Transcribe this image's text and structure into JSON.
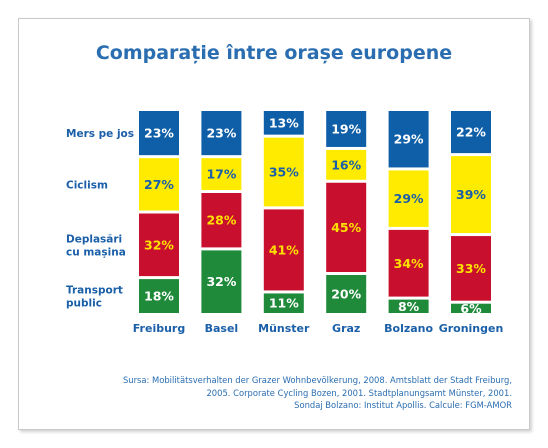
{
  "title": "Comparație între orașe europene",
  "source_lines": [
    "Sursa: Mobilitätsverhalten der Grazer Wohnbevölkerung, 2008. Amtsblatt der Stadt Freiburg,",
    "2005. Corporate Cycling Bozen, 2001. Stadtplanungsamt Münster, 2001.",
    "Sondaj Bolzano: Institut Apollis. Calcule: FGM-AMOR"
  ],
  "chart_data": {
    "type": "bar",
    "stacked": true,
    "value_unit": "%",
    "categories": [
      "Freiburg",
      "Basel",
      "Münster",
      "Graz",
      "Bolzano",
      "Groningen"
    ],
    "series": [
      {
        "name": "Transport public",
        "label_lines": [
          "Transport",
          "public"
        ],
        "color": "#1f8a3a",
        "label_color": "#ffffff",
        "values": [
          18,
          32,
          11,
          20,
          8,
          6
        ]
      },
      {
        "name": "Deplasări cu mașina",
        "label_lines": [
          "Deplasări",
          "cu mașina"
        ],
        "color": "#c8102e",
        "label_color": "#ffe100",
        "values": [
          32,
          28,
          41,
          45,
          34,
          33
        ]
      },
      {
        "name": "Ciclism",
        "label_lines": [
          "Ciclism"
        ],
        "color": "#ffeb00",
        "label_color": "#1a5fa8",
        "values": [
          27,
          17,
          35,
          16,
          29,
          39
        ]
      },
      {
        "name": "Mers pe jos",
        "label_lines": [
          "Mers pe jos"
        ],
        "color": "#0f5fa8",
        "label_color": "#ffffff",
        "values": [
          23,
          23,
          13,
          19,
          29,
          22
        ]
      }
    ],
    "legend_position": "left",
    "grid": false
  }
}
